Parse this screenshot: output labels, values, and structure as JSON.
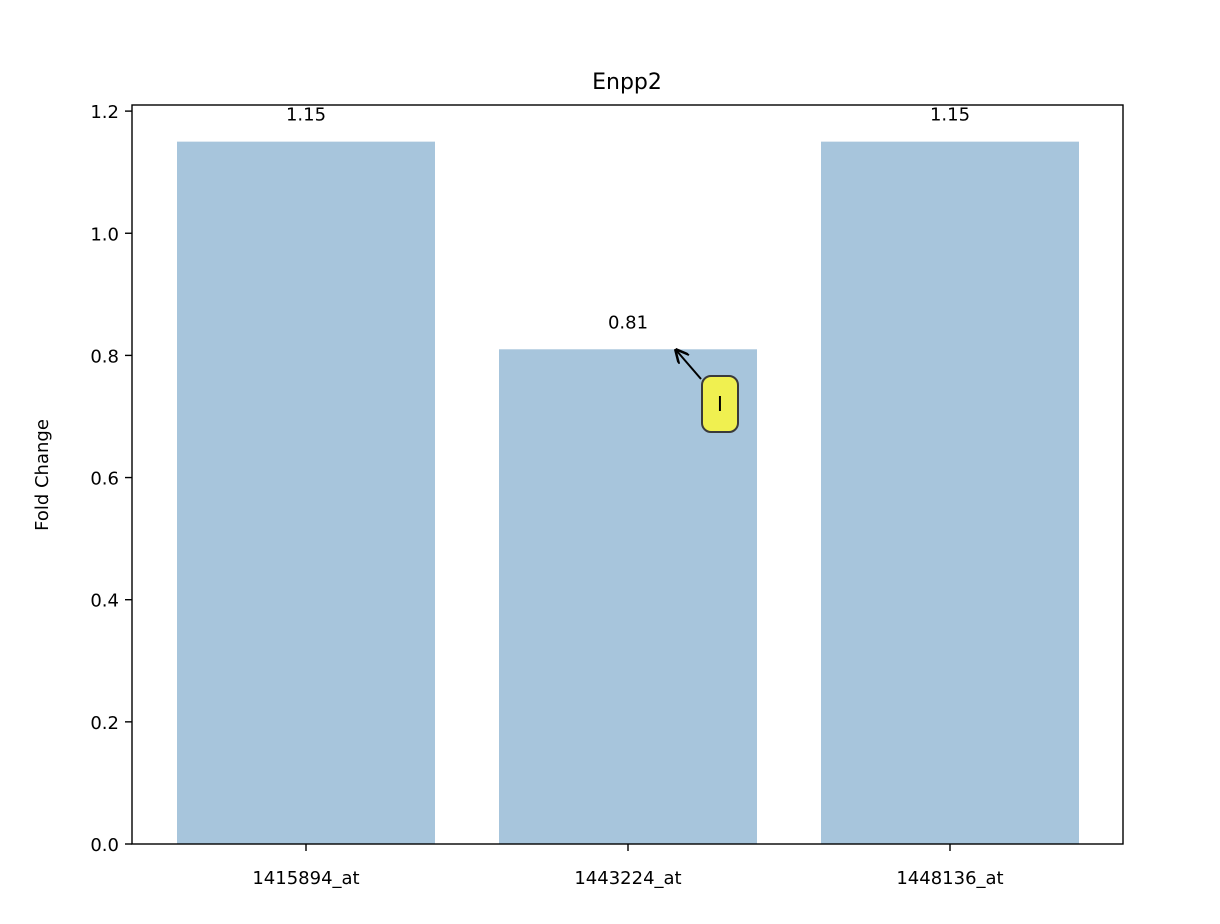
{
  "chart_data": {
    "type": "bar",
    "title": "Enpp2",
    "xlabel": "",
    "ylabel": "Fold Change",
    "categories": [
      "1415894_at",
      "1443224_at",
      "1448136_at"
    ],
    "values": [
      1.15,
      0.81,
      1.15
    ],
    "value_labels": [
      "1.15",
      "0.81",
      "1.15"
    ],
    "ylim": [
      0,
      1.21
    ],
    "yticks": [
      0.0,
      0.2,
      0.4,
      0.6,
      0.8,
      1.0,
      1.2
    ],
    "ytick_labels": [
      "0.0",
      "0.2",
      "0.4",
      "0.6",
      "0.8",
      "1.0",
      "1.2"
    ],
    "grid": false,
    "bar_color": "#a7c5dc",
    "annotation": {
      "text": "I",
      "target_category": "1443224_at",
      "target_value": 0.81,
      "box_color": "#f0f050"
    }
  }
}
